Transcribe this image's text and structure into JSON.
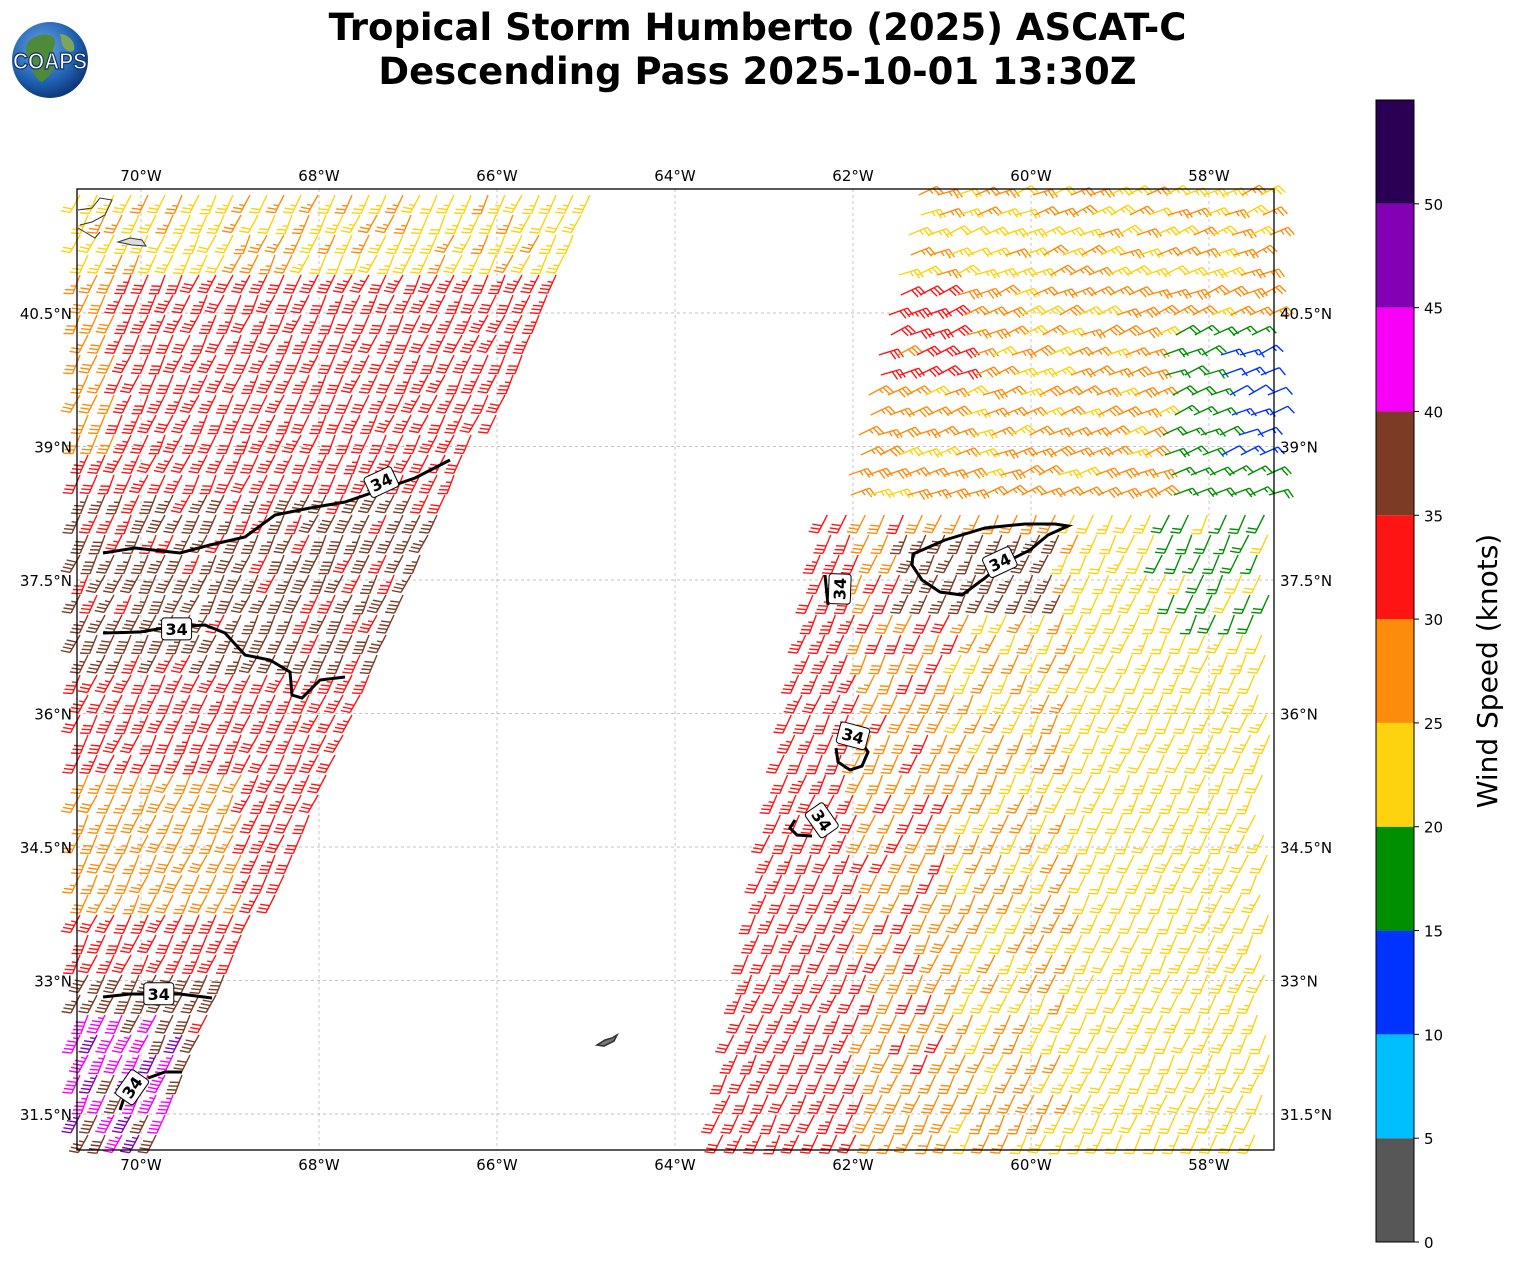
{
  "title": {
    "line1": "Tropical Storm Humberto (2025) ASCAT-C",
    "line2": "Descending Pass 2025-10-01 13:30Z"
  },
  "logo": {
    "text": "COAPS",
    "icon": "globe-logo"
  },
  "map": {
    "lon_range": [
      -70.7,
      -57.3
    ],
    "lat_range": [
      31.1,
      41.9
    ],
    "lon_ticks": [
      {
        "value": -70,
        "label": "70°W"
      },
      {
        "value": -68,
        "label": "68°W"
      },
      {
        "value": -66,
        "label": "66°W"
      },
      {
        "value": -64,
        "label": "64°W"
      },
      {
        "value": -62,
        "label": "62°W"
      },
      {
        "value": -60,
        "label": "60°W"
      },
      {
        "value": -58,
        "label": "58°W"
      }
    ],
    "lat_ticks": [
      {
        "value": 40.5,
        "label": "40.5°N"
      },
      {
        "value": 39,
        "label": "39°N"
      },
      {
        "value": 37.5,
        "label": "37.5°N"
      },
      {
        "value": 36,
        "label": "36°N"
      },
      {
        "value": 34.5,
        "label": "34.5°N"
      },
      {
        "value": 33,
        "label": "33°N"
      },
      {
        "value": 31.5,
        "label": "31.5°N"
      }
    ],
    "gridlines": true,
    "contour_level_label": "34",
    "contour_labels": [
      {
        "lon": -67.3,
        "lat": 38.6,
        "angle": -25
      },
      {
        "lon": -69.6,
        "lat": 36.95,
        "angle": 0
      },
      {
        "lon": -69.8,
        "lat": 32.85,
        "angle": 0
      },
      {
        "lon": -70.1,
        "lat": 31.8,
        "angle": -55
      },
      {
        "lon": -62.15,
        "lat": 37.4,
        "angle": -88
      },
      {
        "lon": -60.35,
        "lat": 37.7,
        "angle": -25
      },
      {
        "lon": -62.0,
        "lat": 35.75,
        "angle": 15
      },
      {
        "lon": -62.35,
        "lat": 34.8,
        "angle": 55
      }
    ]
  },
  "colorbar": {
    "label": "Wind Speed (knots)",
    "ticks": [
      "0",
      "5",
      "10",
      "15",
      "20",
      "25",
      "30",
      "35",
      "40",
      "45",
      "50"
    ],
    "bins": [
      {
        "min": 0,
        "max": 5,
        "color": "#575757"
      },
      {
        "min": 5,
        "max": 10,
        "color": "#00bfff"
      },
      {
        "min": 10,
        "max": 15,
        "color": "#0033ff"
      },
      {
        "min": 15,
        "max": 20,
        "color": "#008f00"
      },
      {
        "min": 20,
        "max": 25,
        "color": "#fdd20f"
      },
      {
        "min": 25,
        "max": 30,
        "color": "#fe8c0c"
      },
      {
        "min": 30,
        "max": 35,
        "color": "#ff1414"
      },
      {
        "min": 35,
        "max": 40,
        "color": "#7b3b25"
      },
      {
        "min": 40,
        "max": 45,
        "color": "#f800f8"
      },
      {
        "min": 45,
        "max": 50,
        "color": "#8300b5"
      },
      {
        "min": 50,
        "max": 55,
        "color": "#2b0054"
      }
    ]
  }
}
